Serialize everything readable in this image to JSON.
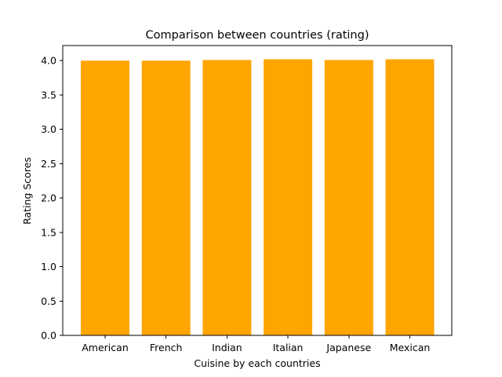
{
  "chart_data": {
    "type": "bar",
    "title": "Comparison between countries (rating)",
    "xlabel": "Cuisine by each countries",
    "ylabel": "Rating Scores",
    "categories": [
      "American",
      "French",
      "Indian",
      "Italian",
      "Japanese",
      "Mexican"
    ],
    "values": [
      4.0,
      4.0,
      4.01,
      4.02,
      4.01,
      4.02
    ],
    "ylim": [
      0,
      4.22
    ],
    "yticks": [
      "0.0",
      "0.5",
      "1.0",
      "1.5",
      "2.0",
      "2.5",
      "3.0",
      "3.5",
      "4.0"
    ],
    "bar_color": "#ffa500",
    "grid": false,
    "legend": "none"
  }
}
